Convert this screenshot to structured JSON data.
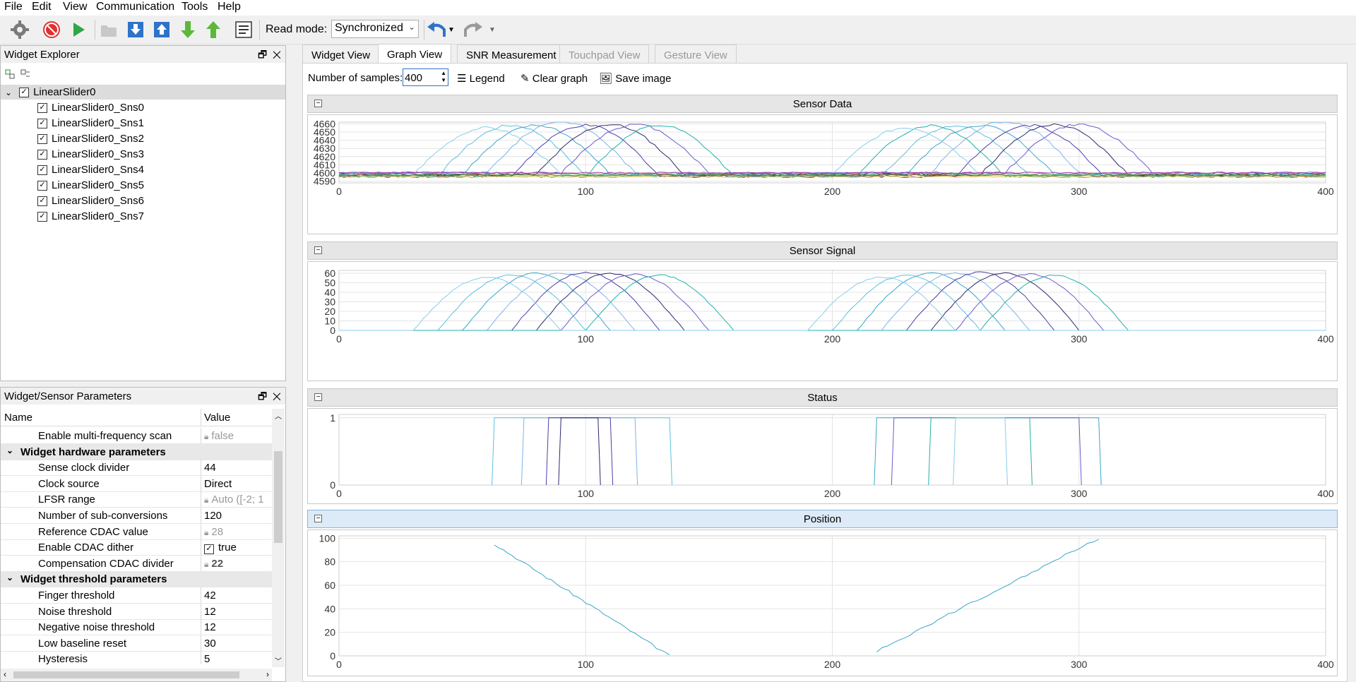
{
  "menu": [
    "File",
    "Edit",
    "View",
    "Communication",
    "Tools",
    "Help"
  ],
  "toolbar": {
    "read_mode_label": "Read mode:",
    "read_mode_value": "Synchronized",
    "icons": [
      "gear-icon",
      "stop-icon",
      "play-icon",
      "open-folder-icon",
      "download-icon",
      "upload-icon",
      "import-icon",
      "export-icon",
      "log-icon",
      "undo-icon",
      "redo-icon"
    ]
  },
  "widget_explorer": {
    "title": "Widget Explorer",
    "root": "LinearSlider0",
    "sensors": [
      "LinearSlider0_Sns0",
      "LinearSlider0_Sns1",
      "LinearSlider0_Sns2",
      "LinearSlider0_Sns3",
      "LinearSlider0_Sns4",
      "LinearSlider0_Sns5",
      "LinearSlider0_Sns6",
      "LinearSlider0_Sns7"
    ]
  },
  "params": {
    "title": "Widget/Sensor Parameters",
    "col_name": "Name",
    "col_value": "Value",
    "rows": [
      {
        "name": "Enable multi-frequency scan",
        "value": "false",
        "locked": true,
        "group": false
      },
      {
        "name": "Widget hardware parameters",
        "value": "",
        "locked": false,
        "group": true
      },
      {
        "name": "Sense clock divider",
        "value": "44",
        "locked": false,
        "group": false
      },
      {
        "name": "Clock source",
        "value": "Direct",
        "locked": false,
        "group": false
      },
      {
        "name": "LFSR range",
        "value": "Auto ([-2; 1",
        "locked": true,
        "group": false
      },
      {
        "name": "Number of sub-conversions",
        "value": "120",
        "locked": false,
        "group": false
      },
      {
        "name": "Reference CDAC value",
        "value": "28",
        "locked": true,
        "group": false
      },
      {
        "name": "Enable CDAC dither",
        "value": "true",
        "locked": false,
        "group": false,
        "checkbox": true
      },
      {
        "name": "Compensation CDAC divider",
        "value": "22",
        "locked": true,
        "group": false,
        "bold": true
      },
      {
        "name": "Widget threshold parameters",
        "value": "",
        "locked": false,
        "group": true
      },
      {
        "name": "Finger threshold",
        "value": "42",
        "locked": false,
        "group": false
      },
      {
        "name": "Noise threshold",
        "value": "12",
        "locked": false,
        "group": false
      },
      {
        "name": "Negative noise threshold",
        "value": "12",
        "locked": false,
        "group": false
      },
      {
        "name": "Low baseline reset",
        "value": "30",
        "locked": false,
        "group": false
      },
      {
        "name": "Hysteresis",
        "value": "5",
        "locked": false,
        "group": false
      }
    ]
  },
  "tabs": [
    {
      "label": "Widget View",
      "active": false,
      "disabled": false
    },
    {
      "label": "Graph View",
      "active": true,
      "disabled": false
    },
    {
      "label": "SNR Measurement",
      "active": false,
      "disabled": false
    },
    {
      "label": "Touchpad View",
      "active": false,
      "disabled": true
    },
    {
      "label": "Gesture View",
      "active": false,
      "disabled": true
    }
  ],
  "graph_toolbar": {
    "samples_label": "Number of samples:",
    "samples_value": "400",
    "legend_label": "Legend",
    "clear_label": "Clear graph",
    "save_label": "Save image"
  },
  "colors": [
    "#5bc0de",
    "#3aa6c9",
    "#7fb3e6",
    "#4b3fa6",
    "#2a2a6e",
    "#6a5acd",
    "#20b2aa",
    "#87ceeb"
  ],
  "chart_data": [
    {
      "type": "line",
      "title": "Sensor Data",
      "x_ticks": [
        0,
        100,
        200,
        300,
        400
      ],
      "y_ticks": [
        4590,
        4600,
        4610,
        4620,
        4630,
        4640,
        4650,
        4660
      ],
      "ylim": [
        4588,
        4662
      ],
      "xlim": [
        0,
        400
      ],
      "series_peaks": [
        {
          "c1": 70,
          "c2": 250,
          "peak": 4660
        },
        {
          "c1": 80,
          "c2": 260,
          "peak": 4658
        },
        {
          "c1": 90,
          "c2": 270,
          "peak": 4661
        },
        {
          "c1": 100,
          "c2": 280,
          "peak": 4660
        },
        {
          "c1": 110,
          "c2": 290,
          "peak": 4659
        },
        {
          "c1": 120,
          "c2": 300,
          "peak": 4657
        },
        {
          "c1": 130,
          "c2": 240,
          "peak": 4660
        },
        {
          "c1": 60,
          "c2": 230,
          "peak": 4655
        }
      ],
      "baseline": 4598
    },
    {
      "type": "line",
      "title": "Sensor Signal",
      "x_ticks": [
        0,
        100,
        200,
        300,
        400
      ],
      "y_ticks": [
        0,
        10,
        20,
        30,
        40,
        50,
        60
      ],
      "ylim": [
        0,
        63
      ],
      "xlim": [
        0,
        400
      ],
      "series_peaks": [
        {
          "c1": 70,
          "c2": 230,
          "peak": 58
        },
        {
          "c1": 80,
          "c2": 240,
          "peak": 60
        },
        {
          "c1": 90,
          "c2": 250,
          "peak": 60
        },
        {
          "c1": 100,
          "c2": 260,
          "peak": 61
        },
        {
          "c1": 110,
          "c2": 270,
          "peak": 60
        },
        {
          "c1": 120,
          "c2": 280,
          "peak": 59
        },
        {
          "c1": 130,
          "c2": 290,
          "peak": 58
        },
        {
          "c1": 60,
          "c2": 220,
          "peak": 56
        }
      ],
      "baseline": 0
    },
    {
      "type": "line",
      "title": "Status",
      "x_ticks": [
        0,
        100,
        200,
        300,
        400
      ],
      "y_ticks": [
        0,
        1
      ],
      "ylim": [
        0,
        1.05
      ],
      "xlim": [
        0,
        400
      ],
      "segments": [
        [
          63,
          134
        ],
        [
          218,
          308
        ],
        [
          75,
          120
        ],
        [
          85,
          110
        ],
        [
          90,
          105
        ],
        [
          225,
          300
        ],
        [
          240,
          280
        ],
        [
          250,
          270
        ]
      ]
    },
    {
      "type": "line",
      "title": "Position",
      "x_ticks": [
        0,
        100,
        200,
        300,
        400
      ],
      "y_ticks": [
        0,
        20,
        40,
        60,
        80,
        100
      ],
      "ylim": [
        0,
        102
      ],
      "xlim": [
        0,
        400
      ],
      "segments": [
        {
          "x0": 63,
          "x1": 134,
          "y0": 95,
          "y1": 0
        },
        {
          "x0": 218,
          "x1": 308,
          "y0": 4,
          "y1": 100
        }
      ]
    }
  ]
}
